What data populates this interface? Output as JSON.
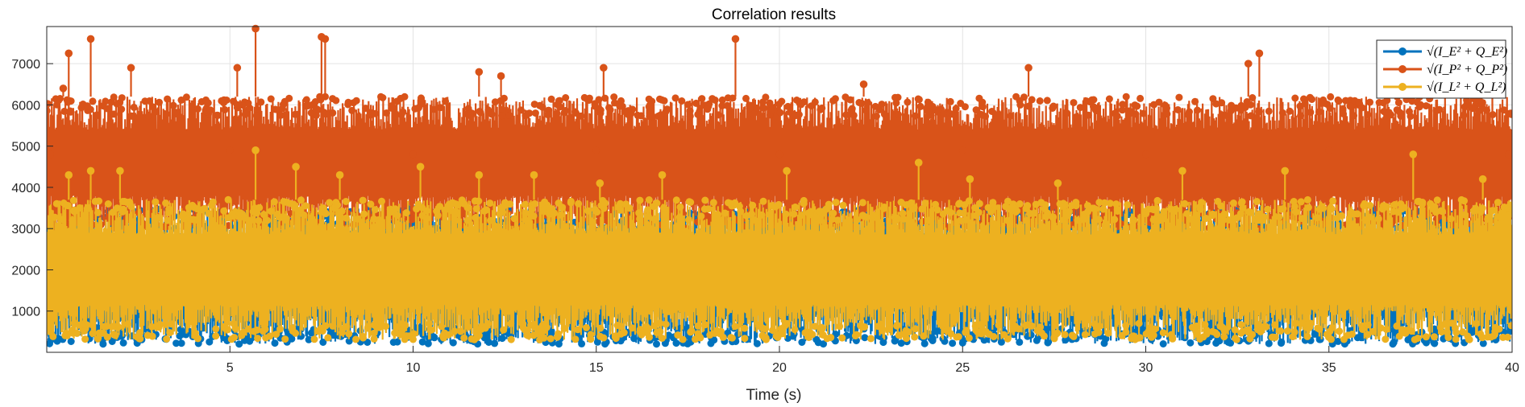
{
  "chart_data": {
    "type": "line",
    "title": "Correlation results",
    "xlabel": "Time (s)",
    "ylabel": "",
    "xlim": [
      0,
      40
    ],
    "ylim": [
      0,
      7900
    ],
    "xticks": [
      5,
      10,
      15,
      20,
      25,
      30,
      35,
      40
    ],
    "yticks": [
      1000,
      2000,
      3000,
      4000,
      5000,
      6000,
      7000
    ],
    "grid": true,
    "legend_position": "top-right",
    "marker": "circle",
    "series": [
      {
        "name": "sqrt(I_E^2 + Q_E^2)",
        "legend_latex": "√(I_E² + Q_E²)",
        "color": "#0072BD",
        "typical_range": [
          200,
          3500
        ],
        "x": [
          0.1,
          1.3,
          5,
          10,
          15,
          20,
          25,
          30,
          35,
          39.9
        ],
        "y": [
          1500,
          1300,
          1800,
          1700,
          1800,
          1700,
          1800,
          1700,
          1800,
          1700
        ]
      },
      {
        "name": "sqrt(I_P^2 + Q_P^2)",
        "legend_latex": "√(I_P² + Q_P²)",
        "color": "#D95319",
        "typical_range": [
          3000,
          6200
        ],
        "peaks": [
          [
            0.45,
            6400
          ],
          [
            0.6,
            7250
          ],
          [
            1.2,
            7600
          ],
          [
            2.3,
            6900
          ],
          [
            5.2,
            6900
          ],
          [
            5.7,
            7850
          ],
          [
            7.5,
            7650
          ],
          [
            7.6,
            7600
          ],
          [
            11.8,
            6800
          ],
          [
            12.4,
            6700
          ],
          [
            15.2,
            6900
          ],
          [
            18.8,
            7600
          ],
          [
            22.3,
            6500
          ],
          [
            26.8,
            6900
          ],
          [
            32.8,
            7000
          ],
          [
            33.1,
            7250
          ],
          [
            39.2,
            6400
          ]
        ],
        "x": [
          0.1,
          5,
          10,
          15,
          20,
          25,
          30,
          35,
          39.9
        ],
        "y": [
          4800,
          4900,
          4800,
          4900,
          4800,
          4900,
          4800,
          4900,
          4800
        ]
      },
      {
        "name": "sqrt(I_L^2 + Q_L^2)",
        "legend_latex": "√(I_L² + Q_L²)",
        "color": "#EDB120",
        "typical_range": [
          300,
          3700
        ],
        "peaks": [
          [
            0.6,
            4300
          ],
          [
            1.2,
            4400
          ],
          [
            2.0,
            4400
          ],
          [
            5.7,
            4900
          ],
          [
            6.8,
            4500
          ],
          [
            8.0,
            4300
          ],
          [
            10.2,
            4500
          ],
          [
            11.8,
            4300
          ],
          [
            13.3,
            4300
          ],
          [
            15.1,
            4100
          ],
          [
            16.8,
            4300
          ],
          [
            20.2,
            4400
          ],
          [
            23.8,
            4600
          ],
          [
            25.2,
            4200
          ],
          [
            27.6,
            4100
          ],
          [
            31.0,
            4400
          ],
          [
            33.8,
            4400
          ],
          [
            37.3,
            4800
          ],
          [
            39.2,
            4200
          ]
        ],
        "x": [
          0.1,
          5,
          10,
          15,
          20,
          25,
          30,
          35,
          39.9
        ],
        "y": [
          2000,
          2100,
          2000,
          2100,
          2000,
          2100,
          2000,
          2100,
          2000
        ]
      }
    ]
  }
}
